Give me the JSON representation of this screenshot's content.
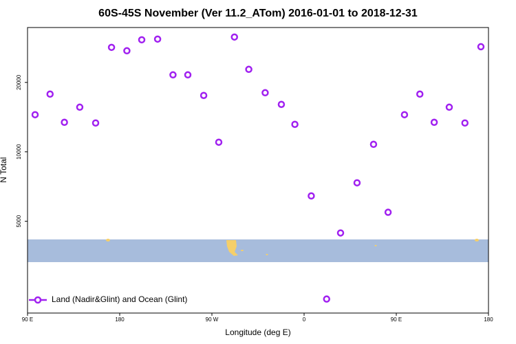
{
  "chart_data": {
    "type": "scatter",
    "title": "60S-45S November (Ver 11.2_ATom)   2016-01-01 to 2018-12-31",
    "x_label": "Longitude (deg E)",
    "y_label": "N Total",
    "xlim": [
      90,
      540
    ],
    "xticks": [
      {
        "value": 90,
        "label": "90 E"
      },
      180,
      {
        "value": 270,
        "label": "90 W"
      },
      {
        "value": 360,
        "label": "0"
      },
      {
        "value": 450,
        "label": "90 E"
      },
      {
        "value": 540,
        "label": "180"
      }
    ],
    "ylim": [
      2000,
      34600
    ],
    "y_log": true,
    "yticks": [
      5000,
      10000,
      20000
    ],
    "legend_position": "bottom-left",
    "series": [
      {
        "name": "Land (Nadir&Glint) and Ocean (Glint)",
        "color": "#a020f0",
        "x": [
          97.4,
          112,
          126,
          141,
          156.5,
          172,
          187,
          201.5,
          217,
          232,
          246.5,
          262,
          276.7,
          292,
          306,
          322,
          337.8,
          351,
          367,
          382,
          395.6,
          411.7,
          427.8,
          442,
          458,
          473,
          487,
          501.7,
          517,
          532.6
        ],
        "values": [
          14490,
          17800,
          13430,
          15620,
          13340,
          28380,
          27430,
          30610,
          30820,
          21570,
          21570,
          17560,
          11010,
          31460,
          22790,
          18040,
          16060,
          13160,
          6440,
          2300,
          4450,
          7340,
          10780,
          5470,
          14490,
          17800,
          13430,
          15620,
          13340,
          28560
        ]
      }
    ]
  }
}
